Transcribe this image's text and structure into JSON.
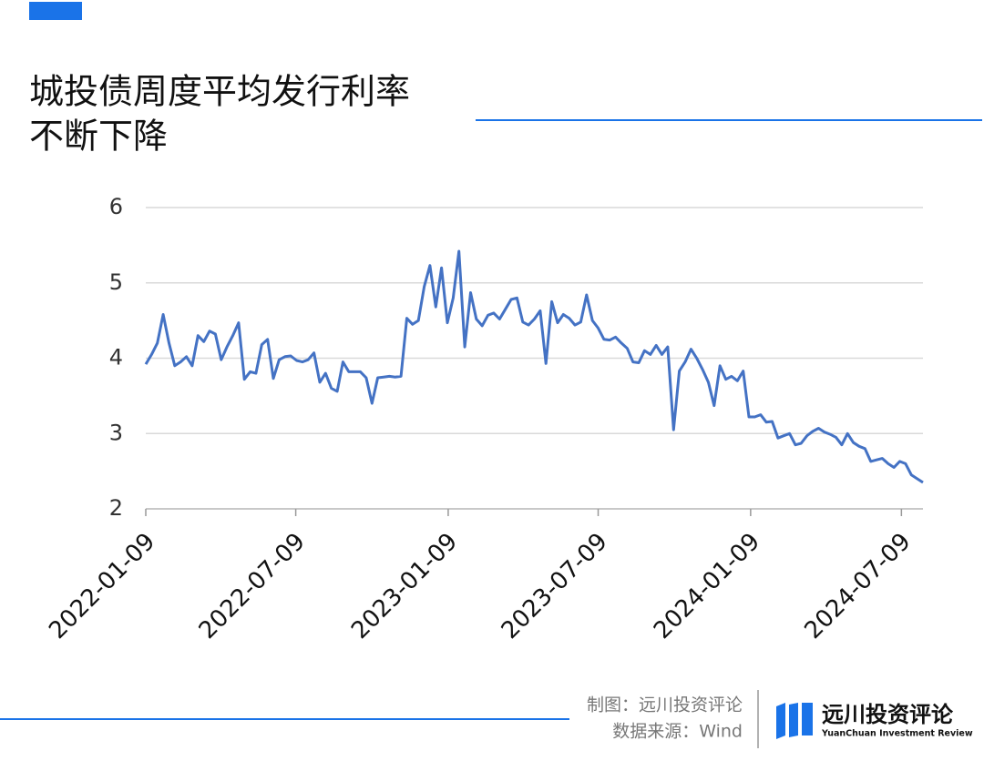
{
  "chart_data": {
    "type": "line",
    "title": [
      "城投债周度平均发行利率",
      "不断下降"
    ],
    "x": [
      "2022-01-09",
      "2022-01-16",
      "2022-01-23",
      "2022-01-30",
      "2022-02-06",
      "2022-02-13",
      "2022-02-20",
      "2022-02-27",
      "2022-03-06",
      "2022-03-13",
      "2022-03-20",
      "2022-03-27",
      "2022-04-03",
      "2022-04-10",
      "2022-04-17",
      "2022-04-24",
      "2022-05-01",
      "2022-05-08",
      "2022-05-15",
      "2022-05-22",
      "2022-05-29",
      "2022-06-05",
      "2022-06-12",
      "2022-06-19",
      "2022-06-26",
      "2022-07-03",
      "2022-07-10",
      "2022-07-17",
      "2022-07-24",
      "2022-07-31",
      "2022-08-07",
      "2022-08-14",
      "2022-08-21",
      "2022-08-28",
      "2022-09-04",
      "2022-09-11",
      "2022-09-18",
      "2022-09-25",
      "2022-10-02",
      "2022-10-09",
      "2022-10-16",
      "2022-10-23",
      "2022-10-30",
      "2022-11-06",
      "2022-11-13",
      "2022-11-20",
      "2022-11-27",
      "2022-12-04",
      "2022-12-11",
      "2022-12-18",
      "2022-12-25",
      "2023-01-01",
      "2023-01-08",
      "2023-01-15",
      "2023-01-22",
      "2023-01-29",
      "2023-02-05",
      "2023-02-12",
      "2023-02-19",
      "2023-02-26",
      "2023-03-05",
      "2023-03-12",
      "2023-03-19",
      "2023-03-26",
      "2023-04-02",
      "2023-04-09",
      "2023-04-16",
      "2023-04-23",
      "2023-04-30",
      "2023-05-07",
      "2023-05-14",
      "2023-05-21",
      "2023-05-28",
      "2023-06-04",
      "2023-06-11",
      "2023-06-18",
      "2023-06-25",
      "2023-07-02",
      "2023-07-09",
      "2023-07-16",
      "2023-07-23",
      "2023-07-30",
      "2023-08-06",
      "2023-08-13",
      "2023-08-20",
      "2023-08-27",
      "2023-09-03",
      "2023-09-10",
      "2023-09-17",
      "2023-09-24",
      "2023-10-01",
      "2023-10-08",
      "2023-10-15",
      "2023-10-22",
      "2023-10-29",
      "2023-11-05",
      "2023-11-12",
      "2023-11-19",
      "2023-11-26",
      "2023-12-03",
      "2023-12-10",
      "2023-12-17",
      "2023-12-24",
      "2023-12-31",
      "2024-01-07",
      "2024-01-14",
      "2024-01-21",
      "2024-01-28",
      "2024-02-04",
      "2024-02-11",
      "2024-02-18",
      "2024-02-25",
      "2024-03-03",
      "2024-03-10",
      "2024-03-17",
      "2024-03-24",
      "2024-03-31",
      "2024-04-07",
      "2024-04-14",
      "2024-04-21",
      "2024-04-28",
      "2024-05-05",
      "2024-05-12",
      "2024-05-19",
      "2024-05-26",
      "2024-06-02",
      "2024-06-09",
      "2024-06-16",
      "2024-06-23",
      "2024-06-30",
      "2024-07-07",
      "2024-07-14",
      "2024-07-21",
      "2024-07-28",
      "2024-08-04"
    ],
    "series": [
      {
        "color": "#4472c4",
        "values": [
          3.92,
          4.05,
          4.2,
          4.58,
          4.2,
          3.9,
          3.95,
          4.02,
          3.9,
          4.3,
          4.22,
          4.36,
          4.32,
          3.98,
          4.15,
          4.3,
          4.47,
          3.72,
          3.82,
          3.8,
          4.18,
          4.25,
          3.73,
          3.98,
          4.02,
          4.03,
          3.97,
          3.95,
          3.98,
          4.07,
          3.68,
          3.8,
          3.6,
          3.56,
          3.95,
          3.82,
          3.82,
          3.82,
          3.74,
          3.4,
          3.74,
          3.75,
          3.76,
          3.75,
          3.76,
          4.53,
          4.45,
          4.5,
          4.95,
          5.23,
          4.68,
          5.2,
          4.47,
          4.8,
          5.42,
          4.15,
          4.87,
          4.52,
          4.43,
          4.57,
          4.6,
          4.52,
          4.65,
          4.78,
          4.8,
          4.48,
          4.44,
          4.52,
          4.63,
          3.93,
          4.75,
          4.47,
          4.58,
          4.53,
          4.44,
          4.48,
          4.84,
          4.5,
          4.4,
          4.25,
          4.24,
          4.28,
          4.2,
          4.13,
          3.95,
          3.94,
          4.1,
          4.05,
          4.17,
          4.05,
          4.15,
          3.05,
          3.83,
          3.95,
          4.12,
          4.0,
          3.85,
          3.68,
          3.37,
          3.9,
          3.72,
          3.76,
          3.7,
          3.83,
          3.22,
          3.22,
          3.25,
          3.15,
          3.16,
          2.94,
          2.97,
          3.0,
          2.85,
          2.87,
          2.97,
          3.03,
          3.07,
          3.02,
          2.99,
          2.95,
          2.85,
          3.0,
          2.88,
          2.83,
          2.8,
          2.63,
          2.65,
          2.67,
          2.6,
          2.55,
          2.63,
          2.6,
          2.45,
          2.4,
          2.35
        ]
      }
    ],
    "xlim": [
      "2022-01-09",
      "2024-08-04"
    ],
    "xticks": [
      "2022-01-09",
      "2022-07-09",
      "2023-01-09",
      "2023-07-09",
      "2024-01-09",
      "2024-07-09"
    ],
    "ylim": [
      2,
      6
    ],
    "yticks": [
      2,
      3,
      4,
      5,
      6
    ],
    "grid": true
  },
  "footer": {
    "credit": "制图：远川投资评论",
    "source": "数据来源：Wind",
    "brand": "远川投资评论",
    "brand_en": "YuanChuan Investment Review"
  }
}
